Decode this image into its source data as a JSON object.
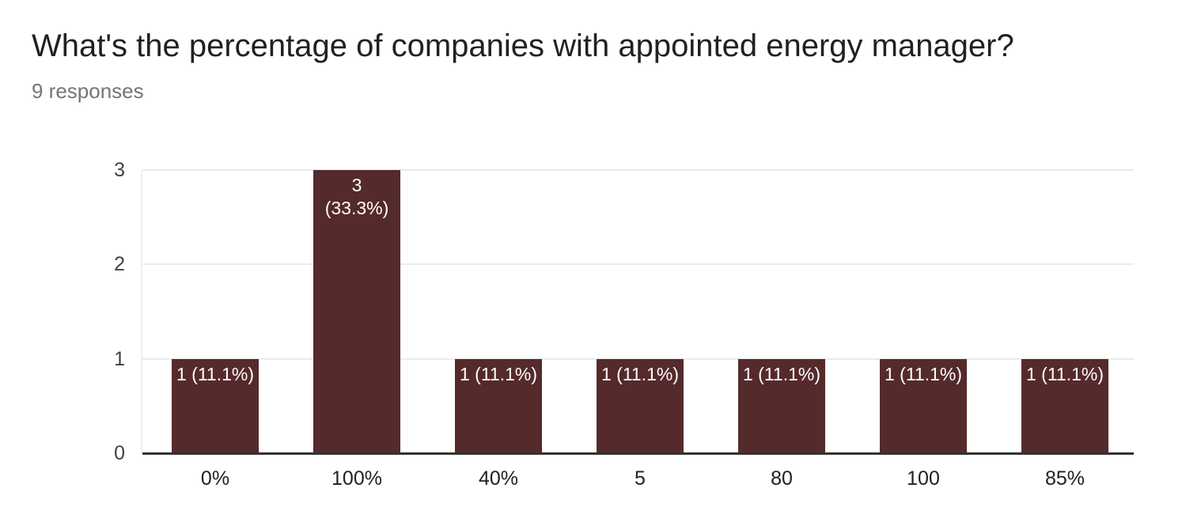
{
  "header": {
    "title": "What's the percentage of companies with appointed energy manager?",
    "subtitle": "9 responses"
  },
  "colors": {
    "background": "#FFFFFF",
    "title_text": "#212121",
    "subtitle_text": "#757575",
    "bar": "#552A2B",
    "bar_label_text": "#FFFFFF",
    "gridline": "#EBEBEB",
    "baseline": "#333333",
    "y_tick_text": "#424242",
    "x_category_text": "#212121"
  },
  "chart_data": {
    "type": "bar",
    "title": "What's the percentage of companies with appointed energy manager?",
    "subtitle": "9 responses",
    "categories": [
      "0%",
      "100%",
      "40%",
      "5",
      "80",
      "100",
      "85%"
    ],
    "values": [
      1,
      3,
      1,
      1,
      1,
      1,
      1
    ],
    "bar_labels": [
      "1 (11.1%)",
      "3\n(33.3%)",
      "1 (11.1%)",
      "1 (11.1%)",
      "1 (11.1%)",
      "1 (11.1%)",
      "1 (11.1%)"
    ],
    "percentages": [
      11.1,
      33.3,
      11.1,
      11.1,
      11.1,
      11.1,
      11.1
    ],
    "total_responses": 9,
    "xlabel": "",
    "ylabel": "",
    "y_ticks": [
      0,
      1,
      2,
      3
    ],
    "ylim": [
      0,
      3
    ],
    "grid": "horizontal",
    "legend": "none"
  }
}
